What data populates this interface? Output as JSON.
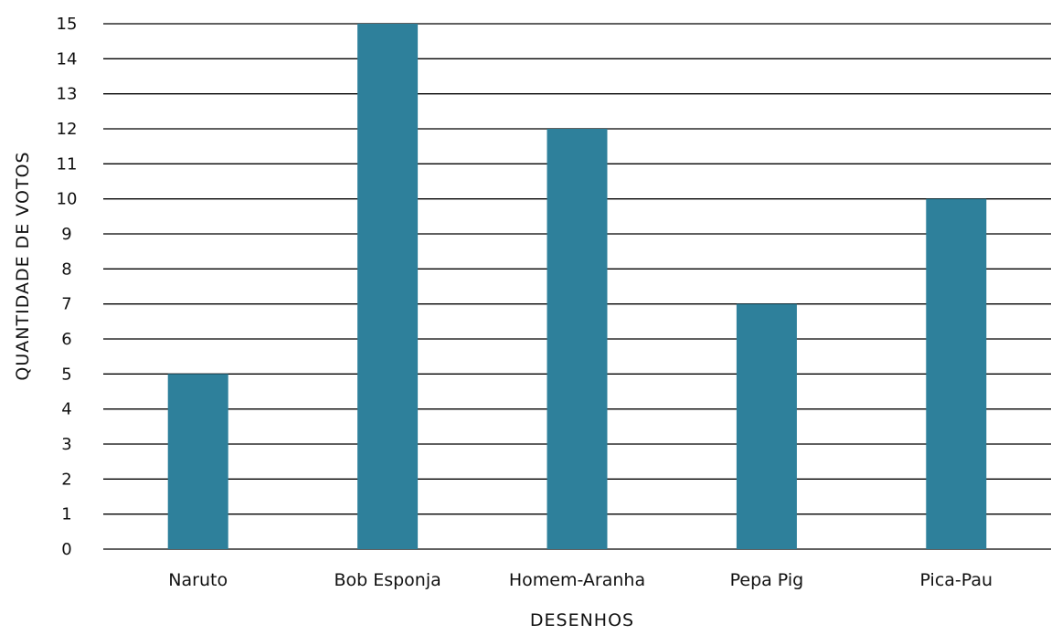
{
  "chart_data": {
    "type": "bar",
    "title": "",
    "xlabel": "DESENHOS",
    "ylabel": "QUANTIDADE DE VOTOS",
    "categories": [
      "Naruto",
      "Bob Esponja",
      "Homem-Aranha",
      "Pepa Pig",
      "Pica-Pau"
    ],
    "values": [
      5,
      15,
      12,
      7,
      10
    ],
    "ylim": [
      0,
      15
    ],
    "yticks": [
      "0",
      "1",
      "2",
      "3",
      "4",
      "5",
      "6",
      "7",
      "8",
      "9",
      "10",
      "11",
      "12",
      "13",
      "14",
      "15"
    ],
    "grid": true,
    "legend": "none",
    "bar_color": "#2e809b"
  }
}
